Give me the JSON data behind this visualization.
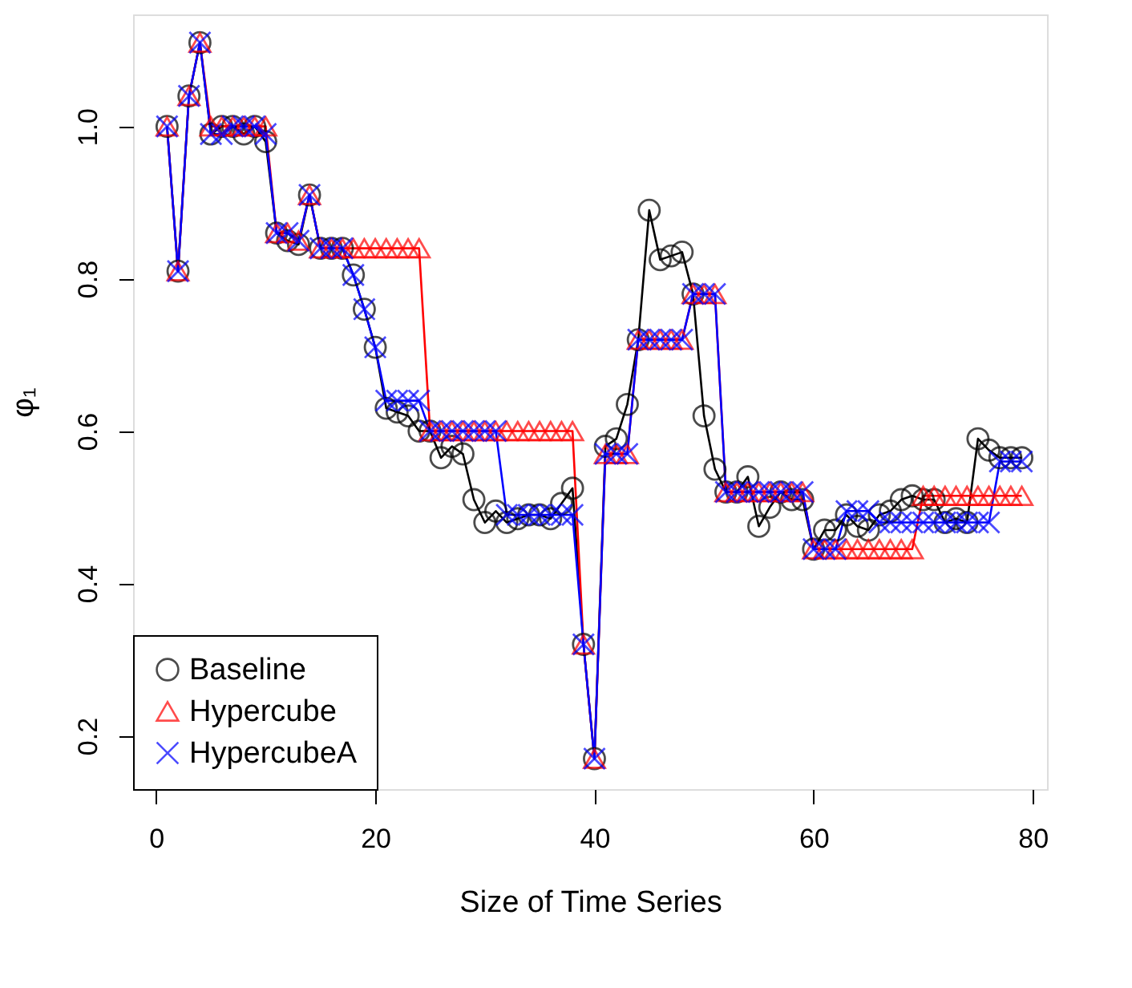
{
  "chart_data": {
    "type": "line",
    "xlabel": "Size of Time Series",
    "ylabel": "φ₁",
    "x": [
      1,
      2,
      3,
      4,
      5,
      6,
      7,
      8,
      9,
      10,
      11,
      12,
      13,
      14,
      15,
      16,
      17,
      18,
      19,
      20,
      21,
      22,
      23,
      24,
      25,
      26,
      27,
      28,
      29,
      30,
      31,
      32,
      33,
      34,
      35,
      36,
      37,
      38,
      39,
      40,
      41,
      42,
      43,
      44,
      45,
      46,
      47,
      48,
      49,
      50,
      51,
      52,
      53,
      54,
      55,
      56,
      57,
      58,
      59,
      60,
      61,
      62,
      63,
      64,
      65,
      66,
      67,
      68,
      69,
      70,
      71,
      72,
      73,
      74,
      75,
      76,
      77,
      78,
      79
    ],
    "series": [
      {
        "name": "Baseline",
        "color": "#000000",
        "marker": "circle",
        "values": [
          1.0,
          0.81,
          1.04,
          1.11,
          0.99,
          1.0,
          1.0,
          0.99,
          1.0,
          0.98,
          0.86,
          0.85,
          0.845,
          0.91,
          0.84,
          0.84,
          0.84,
          0.805,
          0.76,
          0.71,
          0.63,
          0.625,
          0.62,
          0.6,
          0.6,
          0.565,
          0.58,
          0.57,
          0.51,
          0.48,
          0.495,
          0.48,
          0.485,
          0.49,
          0.49,
          0.485,
          0.505,
          0.525,
          0.32,
          0.17,
          0.58,
          0.59,
          0.635,
          0.72,
          0.89,
          0.825,
          0.83,
          0.835,
          0.78,
          0.62,
          0.55,
          0.52,
          0.52,
          0.54,
          0.475,
          0.5,
          0.52,
          0.51,
          0.51,
          0.445,
          0.47,
          0.47,
          0.49,
          0.475,
          0.47,
          0.49,
          0.495,
          0.51,
          0.515,
          0.51,
          0.51,
          0.48,
          0.485,
          0.48,
          0.59,
          0.575,
          0.565,
          0.565,
          0.565
        ]
      },
      {
        "name": "Hypercube",
        "color": "#ff0000",
        "marker": "triangle",
        "values": [
          1.0,
          0.81,
          1.04,
          1.11,
          1.0,
          1.0,
          1.0,
          1.0,
          1.0,
          1.0,
          0.86,
          0.86,
          0.85,
          0.91,
          0.84,
          0.84,
          0.84,
          0.84,
          0.84,
          0.84,
          0.84,
          0.84,
          0.84,
          0.84,
          0.6,
          0.6,
          0.6,
          0.6,
          0.6,
          0.6,
          0.6,
          0.6,
          0.6,
          0.6,
          0.6,
          0.6,
          0.6,
          0.6,
          0.32,
          0.17,
          0.57,
          0.57,
          0.57,
          0.72,
          0.72,
          0.72,
          0.72,
          0.72,
          0.78,
          0.78,
          0.78,
          0.52,
          0.52,
          0.52,
          0.52,
          0.52,
          0.52,
          0.52,
          0.52,
          0.445,
          0.445,
          0.445,
          0.445,
          0.445,
          0.445,
          0.445,
          0.445,
          0.445,
          0.445,
          0.515,
          0.515,
          0.515,
          0.515,
          0.515,
          0.515,
          0.515,
          0.515,
          0.515,
          0.515
        ]
      },
      {
        "name": "HypercubeA",
        "color": "#0000ff",
        "marker": "cross",
        "values": [
          1.0,
          0.81,
          1.04,
          1.11,
          0.99,
          0.99,
          1.0,
          1.0,
          1.0,
          0.99,
          0.86,
          0.86,
          0.85,
          0.91,
          0.84,
          0.84,
          0.84,
          0.805,
          0.76,
          0.71,
          0.64,
          0.64,
          0.64,
          0.64,
          0.6,
          0.6,
          0.6,
          0.6,
          0.6,
          0.6,
          0.6,
          0.49,
          0.49,
          0.49,
          0.49,
          0.49,
          0.49,
          0.49,
          0.32,
          0.17,
          0.57,
          0.57,
          0.57,
          0.72,
          0.72,
          0.72,
          0.72,
          0.72,
          0.78,
          0.78,
          0.78,
          0.52,
          0.52,
          0.52,
          0.52,
          0.52,
          0.52,
          0.52,
          0.52,
          0.445,
          0.445,
          0.445,
          0.495,
          0.495,
          0.495,
          0.48,
          0.48,
          0.48,
          0.48,
          0.48,
          0.48,
          0.48,
          0.48,
          0.48,
          0.48,
          0.48,
          0.56,
          0.56,
          0.56
        ]
      }
    ],
    "xlim": [
      -2.1,
      81.3
    ],
    "ylim": [
      0.13,
      1.147
    ],
    "xticks": [
      0,
      20,
      40,
      60,
      80
    ],
    "yticks": [
      0.2,
      0.4,
      0.6,
      0.8,
      {
        "value": 1,
        "label": "1.0"
      }
    ],
    "legend": "bottom left",
    "grid": false,
    "line_style": "solid"
  }
}
